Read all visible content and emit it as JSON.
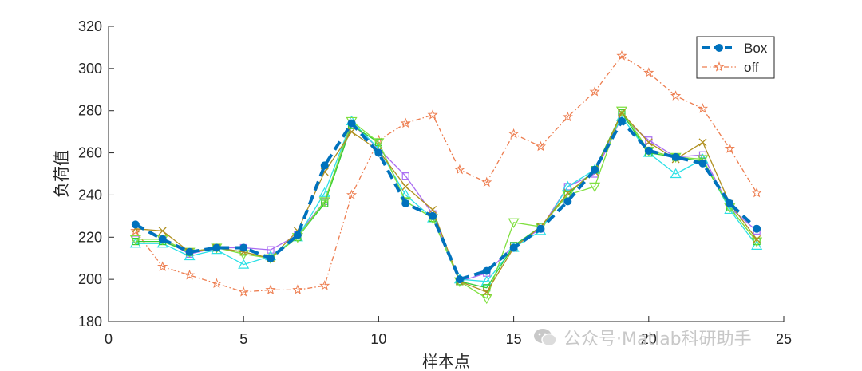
{
  "chart_data": {
    "type": "line",
    "xlabel": "样本点",
    "ylabel": "负荷值",
    "xlim": [
      0,
      25
    ],
    "ylim": [
      180,
      320
    ],
    "xticks": [
      0,
      5,
      10,
      15,
      20,
      25
    ],
    "yticks": [
      180,
      200,
      220,
      240,
      260,
      280,
      300,
      320
    ],
    "grid": false,
    "legend_position": "top-right",
    "x": [
      1,
      2,
      3,
      4,
      5,
      6,
      7,
      8,
      9,
      10,
      11,
      12,
      13,
      14,
      15,
      16,
      17,
      18,
      19,
      20,
      21,
      22,
      23,
      24
    ],
    "series": [
      {
        "name": "Box",
        "color": "#0072BD",
        "style": "dashed-thick",
        "marker": "circle",
        "legend": true,
        "values": [
          226,
          219,
          213,
          215,
          215,
          210,
          221,
          254,
          274,
          260,
          236,
          230,
          200,
          204,
          215,
          224,
          237,
          252,
          275,
          261,
          258,
          255,
          236,
          224
        ]
      },
      {
        "name": "off",
        "color": "#ED7D4F",
        "style": "dashdot",
        "marker": "star",
        "legend": true,
        "values": [
          223,
          206,
          202,
          198,
          194,
          195,
          195,
          197,
          240,
          266,
          274,
          278,
          252,
          246,
          269,
          263,
          277,
          289,
          306,
          298,
          287,
          281,
          262,
          241
        ]
      },
      {
        "color": "#A96BF2",
        "style": "solid",
        "marker": "square",
        "legend": false,
        "values": [
          219,
          219,
          212,
          215,
          215,
          214,
          221,
          237,
          274,
          262,
          249,
          231,
          199,
          203,
          216,
          224,
          244,
          250,
          277,
          266,
          258,
          259,
          234,
          223
        ]
      },
      {
        "color": "#2CE0E6",
        "style": "solid",
        "marker": "triangle-up",
        "legend": false,
        "values": [
          217,
          217,
          211,
          214,
          207,
          211,
          220,
          241,
          275,
          262,
          240,
          229,
          200,
          199,
          215,
          223,
          244,
          252,
          277,
          260,
          250,
          257,
          233,
          216
        ]
      },
      {
        "color": "#33CC33",
        "style": "solid",
        "marker": "square",
        "legend": false,
        "values": [
          218,
          218,
          213,
          215,
          213,
          210,
          220,
          236,
          273,
          265,
          237,
          229,
          199,
          196,
          216,
          225,
          240,
          252,
          279,
          260,
          258,
          256,
          234,
          218
        ]
      },
      {
        "color": "#80E040",
        "style": "solid",
        "marker": "triangle-down",
        "legend": false,
        "values": [
          219,
          219,
          213,
          215,
          212,
          210,
          220,
          237,
          275,
          265,
          237,
          229,
          199,
          191,
          227,
          225,
          240,
          244,
          280,
          261,
          258,
          257,
          234,
          218
        ]
      },
      {
        "color": "#B09020",
        "style": "solid",
        "marker": "x",
        "legend": false,
        "values": [
          224,
          223,
          213,
          215,
          213,
          210,
          223,
          251,
          270,
          261,
          244,
          233,
          199,
          194,
          215,
          225,
          241,
          251,
          279,
          265,
          257,
          265,
          236,
          219
        ]
      }
    ]
  },
  "watermark": {
    "text": "公众号·Matlab科研助手"
  }
}
